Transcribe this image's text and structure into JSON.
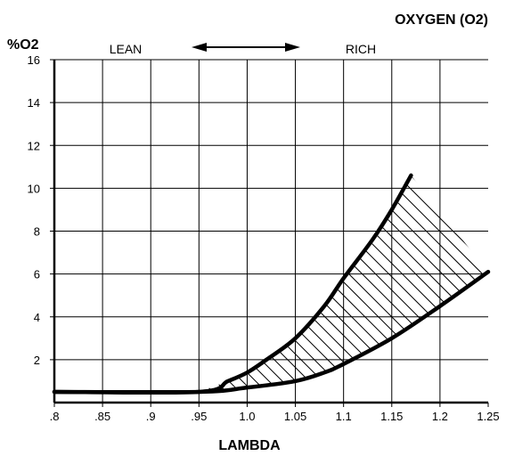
{
  "chart_data": {
    "type": "line",
    "title": "OXYGEN (O2)",
    "ylabel": "%O2",
    "xlabel": "LAMBDA",
    "annotations": {
      "lean": "LEAN",
      "rich": "RICH"
    },
    "xlim": [
      0.8,
      1.25
    ],
    "ylim": [
      0,
      16
    ],
    "x_ticks": [
      0.8,
      0.85,
      0.9,
      0.95,
      1.0,
      1.05,
      1.1,
      1.15,
      1.2,
      1.25
    ],
    "x_tick_labels": [
      ".8",
      ".85",
      ".9",
      ".95",
      "1.0",
      "1.05",
      "1.1",
      "1.15",
      "1.2",
      "1.25"
    ],
    "y_ticks": [
      2,
      4,
      6,
      8,
      10,
      12,
      14,
      16
    ],
    "y_tick_labels": [
      "2",
      "4",
      "6",
      "8",
      "10",
      "12",
      "14",
      "16"
    ],
    "grid": true,
    "series": [
      {
        "x": [
          0.8,
          0.95,
          0.98,
          1.0,
          1.02,
          1.05,
          1.08,
          1.1,
          1.13,
          1.15,
          1.17
        ],
        "y": [
          0.5,
          0.5,
          1.0,
          1.4,
          2.0,
          3.0,
          4.5,
          5.8,
          7.6,
          9.0,
          10.6
        ]
      },
      {
        "x": [
          0.8,
          0.95,
          1.0,
          1.05,
          1.08,
          1.1,
          1.15,
          1.2,
          1.25
        ],
        "y": [
          0.5,
          0.5,
          0.7,
          1.0,
          1.4,
          1.8,
          3.0,
          4.5,
          6.1
        ]
      }
    ],
    "shaded_region": "between series",
    "colors": {
      "line": "#000000",
      "grid": "#000000",
      "background": "#ffffff"
    }
  }
}
